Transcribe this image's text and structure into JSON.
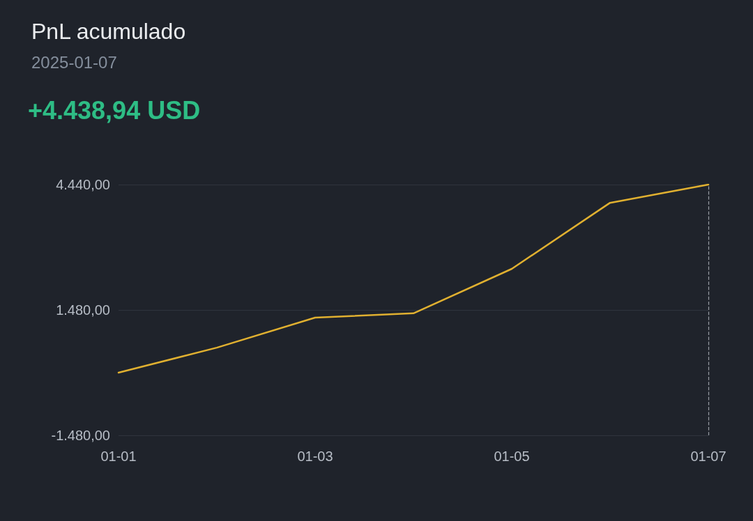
{
  "chart_data": {
    "type": "line",
    "title": "PnL acumulado",
    "subtitle": "2025-01-07",
    "annotations": [
      "+4.438,94 USD"
    ],
    "categories": [
      "01-01",
      null,
      "01-03",
      null,
      "01-05",
      null,
      "01-07"
    ],
    "series": [
      {
        "color": "#e0b030",
        "values": [
          0,
          590,
          1300,
          1400,
          2450,
          4010,
          4440
        ]
      }
    ],
    "ylim": [
      -1480,
      4440
    ],
    "yticks": [
      {
        "value": -1480,
        "label": "-1.480,00"
      },
      {
        "value": 1480,
        "label": "1.480,00"
      },
      {
        "value": 4440,
        "label": "4.440,00"
      }
    ],
    "ref_lines": [
      {
        "axis": "x",
        "value": "01-07",
        "color": "#9a9ea6",
        "line_style": "dashed"
      }
    ],
    "grid": "y",
    "marker": "none",
    "line_style": "solid"
  }
}
